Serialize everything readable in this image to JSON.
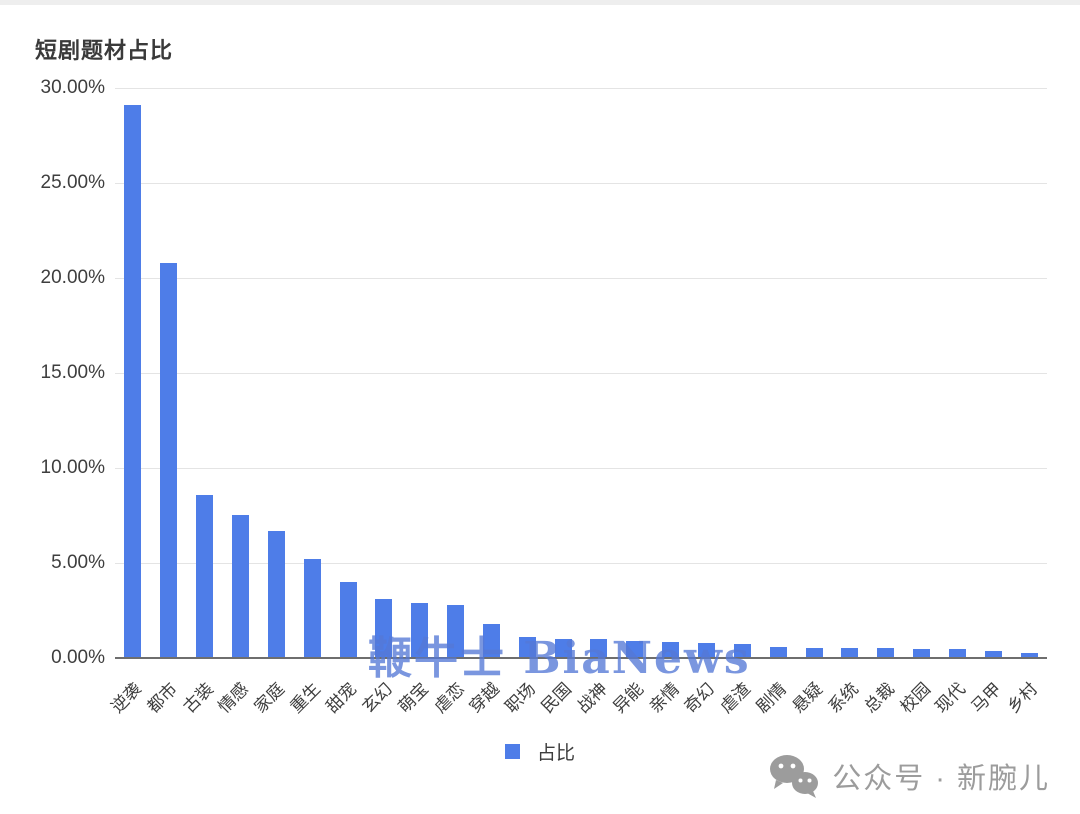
{
  "title": "短剧题材占比",
  "chart_data": {
    "type": "bar",
    "title": "短剧题材占比",
    "categories": [
      "逆袭",
      "都市",
      "古装",
      "情感",
      "家庭",
      "重生",
      "甜宠",
      "玄幻",
      "萌宝",
      "虐恋",
      "穿越",
      "职场",
      "民国",
      "战神",
      "异能",
      "亲情",
      "奇幻",
      "虐渣",
      "剧情",
      "悬疑",
      "系统",
      "总裁",
      "校园",
      "现代",
      "马甲",
      "乡村"
    ],
    "values": [
      29.1,
      20.8,
      8.6,
      7.5,
      6.7,
      5.2,
      4.0,
      3.1,
      2.9,
      2.8,
      1.8,
      1.1,
      1.0,
      1.0,
      0.9,
      0.85,
      0.8,
      0.75,
      0.6,
      0.55,
      0.55,
      0.5,
      0.45,
      0.45,
      0.35,
      0.25
    ],
    "xlabel": "",
    "ylabel": "",
    "ylim": [
      0,
      30
    ],
    "ytick_labels": [
      "0.00%",
      "5.00%",
      "10.00%",
      "15.00%",
      "20.00%",
      "25.00%",
      "30.00%"
    ],
    "grid": true,
    "legend_position": "bottom",
    "series_name": "占比"
  },
  "legend": {
    "label": "占比"
  },
  "watermark": {
    "text": "鞭牛士 BiaNews"
  },
  "footer": {
    "text": "公众号 · 新腕儿"
  },
  "icons": {
    "wechat": "wechat-logo-icon"
  },
  "colors": {
    "bar": "#4e7de8",
    "watermark": "rgba(84,120,214,0.78)",
    "gridline": "#e4e4e4",
    "axis": "#6e6e6e",
    "footer_gray": "#9c9c9c"
  }
}
